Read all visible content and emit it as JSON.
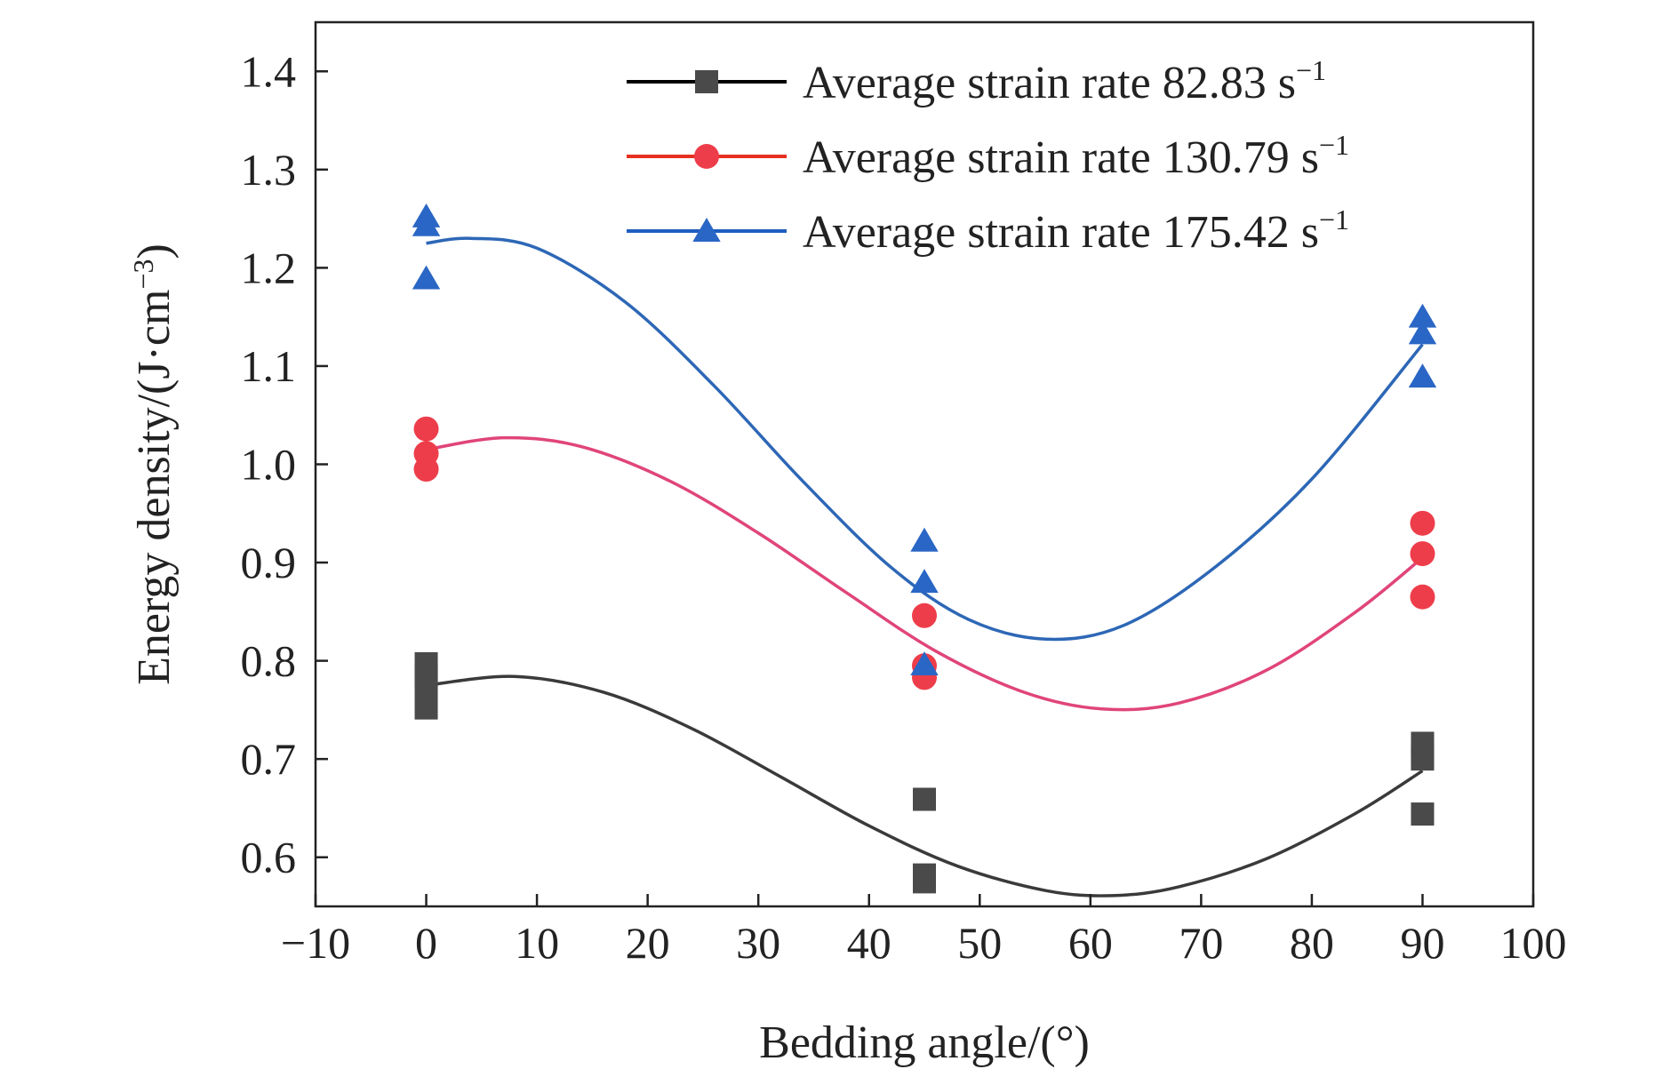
{
  "chart_data": {
    "type": "scatter",
    "xlabel": "Bedding angle/(°)",
    "ylabel_main": "Energy density/(J·cm",
    "ylabel_sup": "−3",
    "ylabel_close": ")",
    "xlim": [
      -10,
      100
    ],
    "ylim": [
      0.55,
      1.45
    ],
    "x_ticks": [
      -10,
      0,
      10,
      20,
      30,
      40,
      50,
      60,
      70,
      80,
      90,
      100
    ],
    "x_tick_labels": [
      "−10",
      "0",
      "10",
      "20",
      "30",
      "40",
      "50",
      "60",
      "70",
      "80",
      "90",
      "100"
    ],
    "y_ticks": [
      0.6,
      0.7,
      0.8,
      0.9,
      1.0,
      1.1,
      1.2,
      1.3,
      1.4
    ],
    "y_tick_labels": [
      "0.6",
      "0.7",
      "0.8",
      "0.9",
      "1.0",
      "1.1",
      "1.2",
      "1.3",
      "1.4"
    ],
    "grid": false,
    "legend_position": "top-right",
    "series": [
      {
        "name_main": "Average strain rate 82.83 s",
        "name_sup": "−1",
        "marker": "square",
        "marker_color": "#4a4a4a",
        "line_color": "#3a3a3a",
        "legend_line_color": "#000000",
        "points": [
          {
            "x": 0,
            "y": 0.797
          },
          {
            "x": 0,
            "y": 0.785
          },
          {
            "x": 0,
            "y": 0.775
          },
          {
            "x": 0,
            "y": 0.752
          },
          {
            "x": 45,
            "y": 0.659
          },
          {
            "x": 45,
            "y": 0.582
          },
          {
            "x": 45,
            "y": 0.575
          },
          {
            "x": 90,
            "y": 0.716
          },
          {
            "x": 90,
            "y": 0.705
          },
          {
            "x": 90,
            "y": 0.7
          },
          {
            "x": 90,
            "y": 0.644
          }
        ],
        "fit_curve": [
          {
            "x": 0,
            "y": 0.775
          },
          {
            "x": 8,
            "y": 0.784
          },
          {
            "x": 16,
            "y": 0.768
          },
          {
            "x": 24,
            "y": 0.731
          },
          {
            "x": 32,
            "y": 0.682
          },
          {
            "x": 40,
            "y": 0.632
          },
          {
            "x": 48,
            "y": 0.591
          },
          {
            "x": 56,
            "y": 0.566
          },
          {
            "x": 62,
            "y": 0.561
          },
          {
            "x": 68,
            "y": 0.57
          },
          {
            "x": 76,
            "y": 0.599
          },
          {
            "x": 84,
            "y": 0.645
          },
          {
            "x": 90,
            "y": 0.688
          }
        ]
      },
      {
        "name_main": "Average strain rate 130.79 s",
        "name_sup": "−1",
        "marker": "circle",
        "marker_color": "#ee3d4a",
        "line_color": "#e0457a",
        "legend_line_color": "#e83020",
        "points": [
          {
            "x": 0,
            "y": 1.036
          },
          {
            "x": 0,
            "y": 1.011
          },
          {
            "x": 0,
            "y": 0.995
          },
          {
            "x": 45,
            "y": 0.846
          },
          {
            "x": 45,
            "y": 0.795
          },
          {
            "x": 45,
            "y": 0.783
          },
          {
            "x": 90,
            "y": 0.94
          },
          {
            "x": 90,
            "y": 0.909
          },
          {
            "x": 90,
            "y": 0.865
          }
        ],
        "fit_curve": [
          {
            "x": 0,
            "y": 1.015
          },
          {
            "x": 7,
            "y": 1.027
          },
          {
            "x": 14,
            "y": 1.018
          },
          {
            "x": 22,
            "y": 0.983
          },
          {
            "x": 30,
            "y": 0.93
          },
          {
            "x": 38,
            "y": 0.869
          },
          {
            "x": 46,
            "y": 0.81
          },
          {
            "x": 54,
            "y": 0.768
          },
          {
            "x": 61,
            "y": 0.751
          },
          {
            "x": 68,
            "y": 0.757
          },
          {
            "x": 76,
            "y": 0.791
          },
          {
            "x": 84,
            "y": 0.85
          },
          {
            "x": 90,
            "y": 0.905
          }
        ]
      },
      {
        "name_main": "Average strain rate 175.42 s",
        "name_sup": "−1",
        "marker": "triangle",
        "marker_color": "#2a66c5",
        "line_color": "#2d67b6",
        "legend_line_color": "#1f5dc0",
        "points": [
          {
            "x": 0,
            "y": 1.252
          },
          {
            "x": 0,
            "y": 1.243
          },
          {
            "x": 0,
            "y": 1.189
          },
          {
            "x": 45,
            "y": 0.922
          },
          {
            "x": 45,
            "y": 0.88
          },
          {
            "x": 45,
            "y": 0.796
          },
          {
            "x": 90,
            "y": 1.15
          },
          {
            "x": 90,
            "y": 1.133
          },
          {
            "x": 90,
            "y": 1.089
          }
        ],
        "fit_curve": [
          {
            "x": 0,
            "y": 1.225
          },
          {
            "x": 4,
            "y": 1.23
          },
          {
            "x": 10,
            "y": 1.22
          },
          {
            "x": 18,
            "y": 1.165
          },
          {
            "x": 26,
            "y": 1.08
          },
          {
            "x": 34,
            "y": 0.983
          },
          {
            "x": 42,
            "y": 0.895
          },
          {
            "x": 49,
            "y": 0.842
          },
          {
            "x": 56,
            "y": 0.822
          },
          {
            "x": 63,
            "y": 0.836
          },
          {
            "x": 71,
            "y": 0.893
          },
          {
            "x": 80,
            "y": 0.985
          },
          {
            "x": 90,
            "y": 1.122
          }
        ]
      }
    ]
  }
}
